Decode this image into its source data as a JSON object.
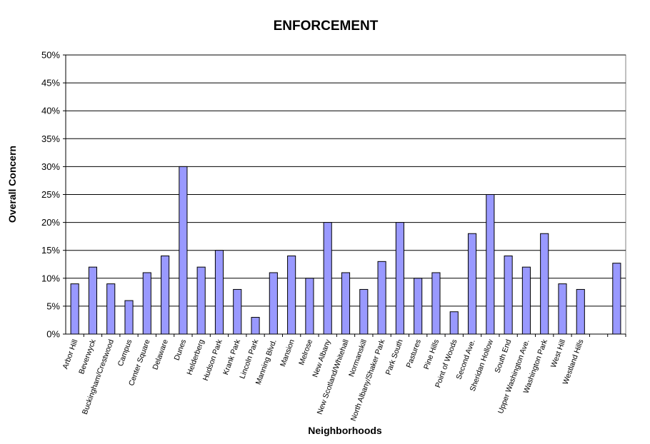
{
  "chart_data": {
    "type": "bar",
    "title": "ENFORCEMENT",
    "xlabel": "Neighborhoods",
    "ylabel": "Overall Concern",
    "ylim": [
      0,
      50
    ],
    "yticks": [
      "0%",
      "5%",
      "10%",
      "15%",
      "20%",
      "25%",
      "30%",
      "35%",
      "40%",
      "45%",
      "50%"
    ],
    "grid": true,
    "legend": "none",
    "bar_color": "#9999ff",
    "categories": [
      "Arbor Hill",
      "Beverwyck",
      "Buckingham/Crestwood",
      "Campus",
      "Center Square",
      "Delaware",
      "Dunes",
      "Helderberg",
      "Hudson Park",
      "Krank Park",
      "Lincoln Park",
      "Manning Blvd.",
      "Mansion",
      "Melrose",
      "New Albany",
      "New Scotland/Whitehall",
      "Normanskill",
      "North Albany/Shaker Park",
      "Park South",
      "Pastures",
      "Pine Hills",
      "Point of Woods",
      "Second Ave.",
      "Sheridan Hollow",
      "South End",
      "Upper Washington Ave.",
      "Washington Park",
      "West Hill",
      "Westland Hills",
      "",
      ""
    ],
    "values": [
      9,
      12,
      9,
      6,
      11,
      14,
      30,
      12,
      15,
      8,
      3,
      11,
      14,
      10,
      20,
      11,
      8,
      13,
      20,
      10,
      11,
      4,
      18,
      25,
      14,
      12,
      18,
      9,
      8,
      null,
      12.7
    ]
  }
}
